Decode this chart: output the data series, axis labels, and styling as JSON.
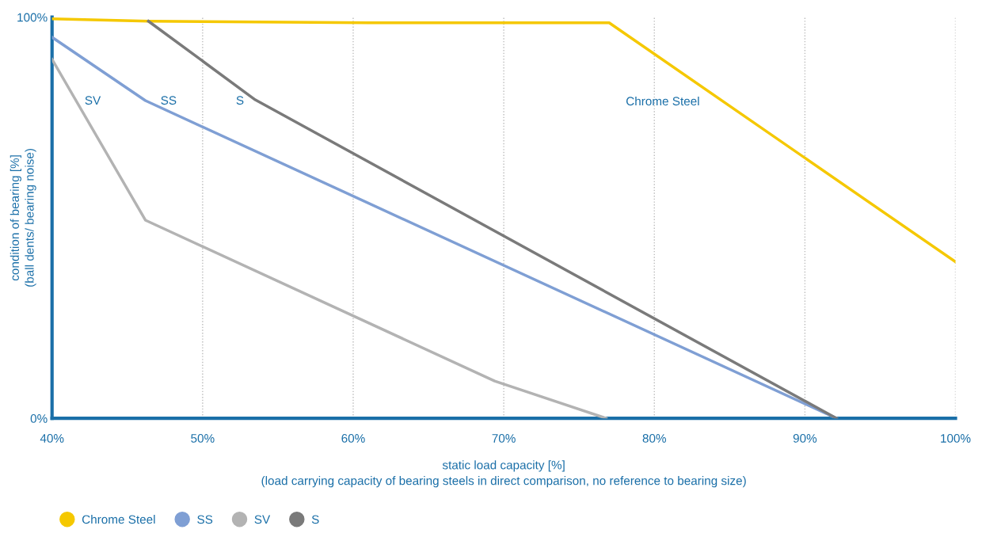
{
  "chart_data": {
    "type": "line",
    "xlabel": "static load capacity [%]\n(load carrying capacity of bearing steels in direct comparison, no reference to bearing size)",
    "ylabel": "condition of bearing [%]\n(ball dents/ bearing noise)",
    "series": [
      {
        "name": "Chrome Steel",
        "color": "#f5c800",
        "x": [
          40,
          46.4,
          61,
          77,
          100
        ],
        "values": [
          99.6,
          99,
          98.6,
          98.6,
          39
        ]
      },
      {
        "name": "SS",
        "color": "#7f9fd4",
        "x": [
          40,
          46.2,
          92.1
        ],
        "values": [
          95,
          79.2,
          0
        ]
      },
      {
        "name": "SV",
        "color": "#b3b3b3",
        "x": [
          40,
          46.2,
          69.4,
          76.8
        ],
        "values": [
          89.5,
          49.4,
          9.3,
          0
        ]
      },
      {
        "name": "S",
        "color": "#7a7a7a",
        "x": [
          46.4,
          53.5,
          92.1
        ],
        "values": [
          99,
          79.4,
          0
        ]
      }
    ],
    "annotations": [
      "SV",
      "SS",
      "S",
      "Chrome Steel"
    ],
    "xlim": [
      40,
      100
    ],
    "xticks": [
      {
        "value": 40,
        "label": "40%"
      },
      {
        "value": 50,
        "label": "50%"
      },
      {
        "value": 60,
        "label": "60%"
      },
      {
        "value": 70,
        "label": "70%"
      },
      {
        "value": 80,
        "label": "80%"
      },
      {
        "value": 90,
        "label": "90%"
      },
      {
        "value": 100,
        "label": "100%"
      }
    ],
    "ylim": [
      0,
      100
    ],
    "yticks": [
      {
        "value": 0,
        "label": "0%"
      },
      {
        "value": 100,
        "label": "100%"
      }
    ],
    "grid": "x",
    "legend": "bottom left",
    "marker": "none",
    "line_style": "solid"
  }
}
